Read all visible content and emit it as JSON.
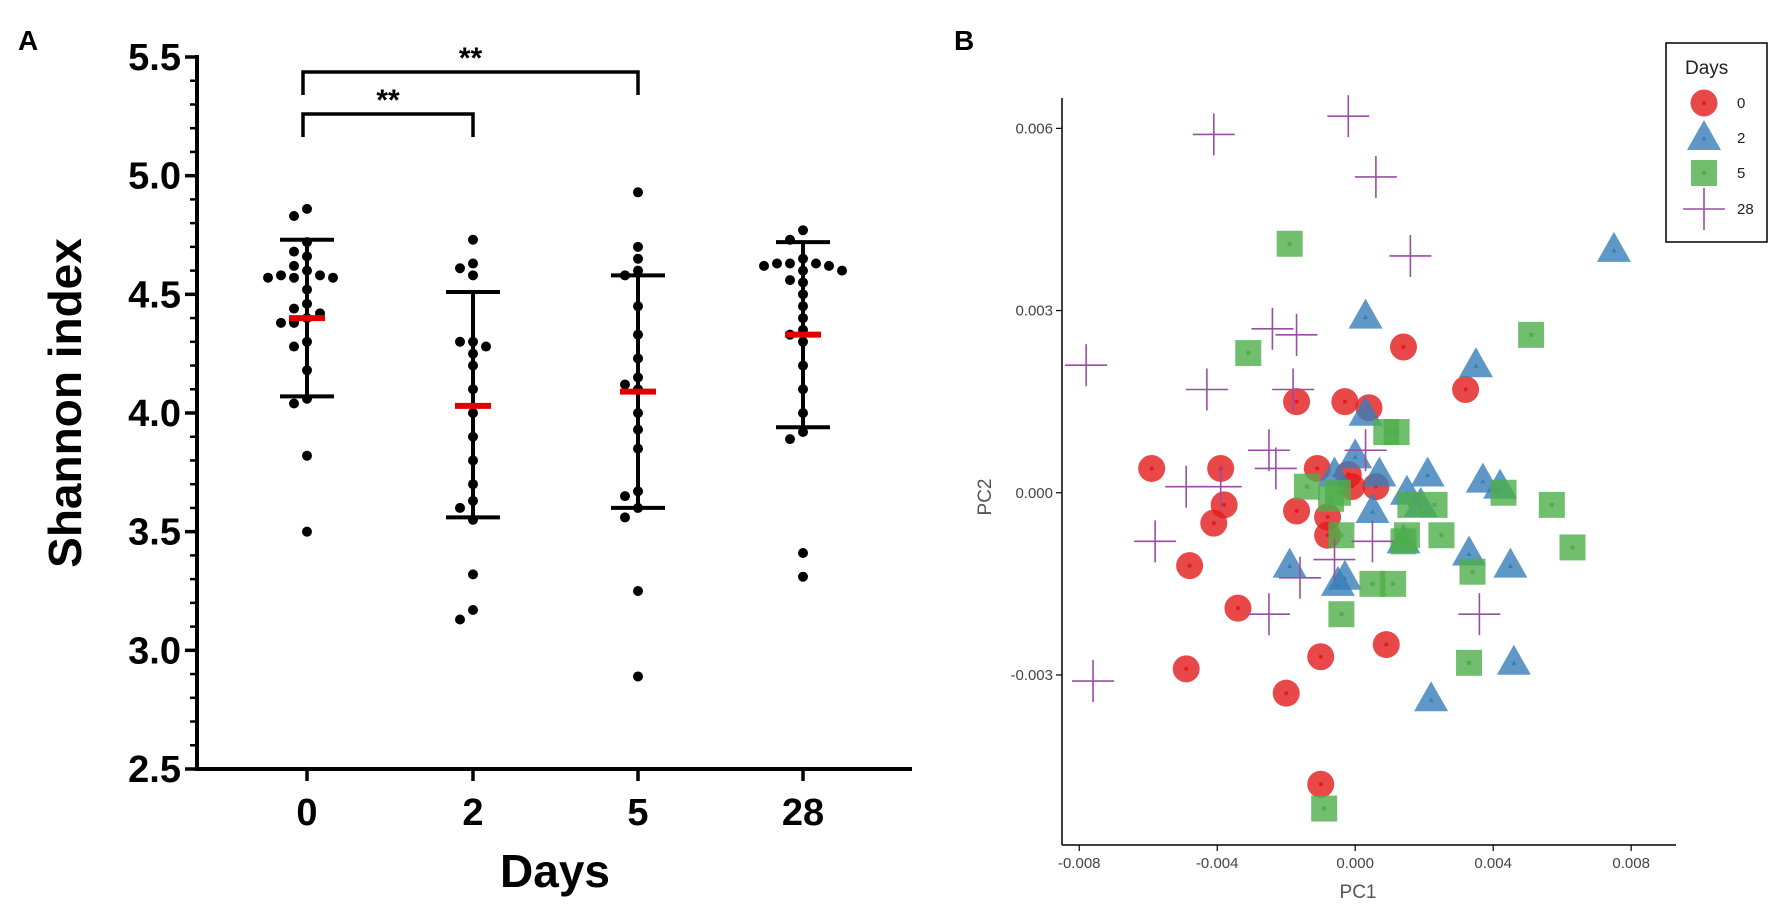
{
  "chart_data": [
    {
      "panel": "A",
      "type": "scatter",
      "xlabel": "Days",
      "ylabel": "Shannon index",
      "categories": [
        "0",
        "2",
        "5",
        "28"
      ],
      "ylim": [
        2.5,
        5.5
      ],
      "yticks": [
        "2.5",
        "3.0",
        "3.5",
        "4.0",
        "4.5",
        "5.0",
        "5.5"
      ],
      "groups": [
        {
          "day": "0",
          "mean": 4.4,
          "upper": 4.73,
          "lower": 4.07,
          "points": [
            4.86,
            4.83,
            4.72,
            4.68,
            4.66,
            4.62,
            4.6,
            4.58,
            4.58,
            4.57,
            4.57,
            4.57,
            4.52,
            4.46,
            4.44,
            4.42,
            4.4,
            4.38,
            4.38,
            4.3,
            4.28,
            4.18,
            4.06,
            4.04,
            3.82,
            3.5
          ]
        },
        {
          "day": "2",
          "mean": 4.03,
          "upper": 4.51,
          "lower": 3.56,
          "points": [
            4.73,
            4.63,
            4.61,
            4.58,
            4.3,
            4.3,
            4.28,
            4.25,
            4.2,
            4.1,
            4.0,
            3.9,
            3.8,
            3.7,
            3.63,
            3.6,
            3.55,
            3.32,
            3.17,
            3.13
          ]
        },
        {
          "day": "5",
          "mean": 4.09,
          "upper": 4.58,
          "lower": 3.6,
          "points": [
            4.93,
            4.7,
            4.65,
            4.6,
            4.58,
            4.45,
            4.33,
            4.23,
            4.15,
            4.12,
            4.1,
            4.0,
            3.93,
            3.85,
            3.67,
            3.65,
            3.6,
            3.56,
            3.25,
            2.89
          ]
        },
        {
          "day": "28",
          "mean": 4.33,
          "upper": 4.72,
          "lower": 3.94,
          "points": [
            4.77,
            4.73,
            4.65,
            4.63,
            4.63,
            4.63,
            4.62,
            4.62,
            4.6,
            4.6,
            4.56,
            4.55,
            4.5,
            4.45,
            4.4,
            4.35,
            4.33,
            4.3,
            4.2,
            4.1,
            4.0,
            3.92,
            3.89,
            3.41,
            3.31
          ]
        }
      ],
      "significance": [
        {
          "from": "0",
          "to": "2",
          "label": "**"
        },
        {
          "from": "0",
          "to": "5",
          "label": "**"
        }
      ]
    },
    {
      "panel": "B",
      "type": "scatter",
      "xlabel": "PC1",
      "ylabel": "PC2",
      "xlim": [
        -0.0085,
        0.0093
      ],
      "ylim": [
        -0.0058,
        0.0065
      ],
      "xticks": [
        "-0.008",
        "-0.004",
        "0.000",
        "0.004",
        "0.008"
      ],
      "xtick_values": [
        -0.008,
        -0.004,
        0,
        0.004,
        0.008
      ],
      "yticks": [
        "-0.003",
        "0.000",
        "0.003",
        "0.006"
      ],
      "ytick_values": [
        -0.003,
        0,
        0.003,
        0.006
      ],
      "legend_title": "Days",
      "legend_position": "top-right",
      "series": [
        {
          "name": "0",
          "shape": "circle",
          "color": "#e41a1c",
          "points": [
            [
              -0.0059,
              0.0004
            ],
            [
              -0.0039,
              0.0004
            ],
            [
              -0.0038,
              -0.0002
            ],
            [
              -0.0041,
              -0.0005
            ],
            [
              -0.0048,
              -0.0012
            ],
            [
              -0.0034,
              -0.0019
            ],
            [
              -0.0049,
              -0.0029
            ],
            [
              -0.002,
              -0.0033
            ],
            [
              -0.001,
              -0.0027
            ],
            [
              0.0009,
              -0.0025
            ],
            [
              -0.0017,
              0.0015
            ],
            [
              -0.0003,
              0.0015
            ],
            [
              0.0004,
              0.0014
            ],
            [
              0.0014,
              0.0024
            ],
            [
              0.0032,
              0.0017
            ],
            [
              -0.0011,
              0.0004
            ],
            [
              -0.0017,
              -0.0003
            ],
            [
              -0.0008,
              -0.0004
            ],
            [
              0.0006,
              0.0001
            ],
            [
              -0.0001,
              0.0001
            ],
            [
              -0.0002,
              0.0003
            ],
            [
              -0.001,
              -0.0048
            ],
            [
              -0.0008,
              -0.0007
            ]
          ]
        },
        {
          "name": "2",
          "shape": "triangle",
          "color": "#377eb8",
          "points": [
            [
              0.0075,
              0.004
            ],
            [
              0.0003,
              0.0029
            ],
            [
              0.0035,
              0.0021
            ],
            [
              0.0003,
              0.0013
            ],
            [
              0.0,
              0.0006
            ],
            [
              0.0007,
              0.0003
            ],
            [
              0.0021,
              0.0003
            ],
            [
              0.0037,
              0.0002
            ],
            [
              0.0042,
              0.0001
            ],
            [
              0.0015,
              0.0
            ],
            [
              0.0019,
              -0.0002
            ],
            [
              0.0005,
              -0.0003
            ],
            [
              0.0014,
              -0.0008
            ],
            [
              0.0033,
              -0.001
            ],
            [
              0.0045,
              -0.0012
            ],
            [
              -0.0019,
              -0.0012
            ],
            [
              -0.0005,
              -0.0015
            ],
            [
              0.0022,
              -0.0034
            ],
            [
              0.0046,
              -0.0028
            ],
            [
              -0.0003,
              -0.0014
            ],
            [
              -0.0006,
              0.0003
            ]
          ]
        },
        {
          "name": "5",
          "shape": "square",
          "color": "#4daf4a",
          "points": [
            [
              -0.0019,
              0.0041
            ],
            [
              0.0051,
              0.0026
            ],
            [
              -0.0031,
              0.0023
            ],
            [
              0.0009,
              0.001
            ],
            [
              0.0012,
              0.001
            ],
            [
              -0.0014,
              0.0001
            ],
            [
              -0.0005,
              0.0
            ],
            [
              0.0043,
              0.0
            ],
            [
              0.0057,
              -0.0002
            ],
            [
              0.0063,
              -0.0009
            ],
            [
              0.0016,
              -0.0002
            ],
            [
              0.0023,
              -0.0002
            ],
            [
              -0.0004,
              -0.0007
            ],
            [
              0.0015,
              -0.0007
            ],
            [
              0.0025,
              -0.0007
            ],
            [
              0.0034,
              -0.0013
            ],
            [
              0.0005,
              -0.0015
            ],
            [
              0.0011,
              -0.0015
            ],
            [
              -0.0004,
              -0.002
            ],
            [
              0.0033,
              -0.0028
            ],
            [
              -0.0009,
              -0.0052
            ],
            [
              -0.0007,
              -0.0001
            ],
            [
              0.0014,
              -0.0008
            ]
          ]
        },
        {
          "name": "28",
          "shape": "cross",
          "color": "#984ea3",
          "points": [
            [
              -0.0078,
              0.0021
            ],
            [
              -0.0041,
              0.0059
            ],
            [
              -0.0002,
              0.0062
            ],
            [
              0.0006,
              0.0052
            ],
            [
              0.0016,
              0.0039
            ],
            [
              -0.0024,
              0.0027
            ],
            [
              -0.0017,
              0.0026
            ],
            [
              -0.0043,
              0.0017
            ],
            [
              -0.0025,
              0.0007
            ],
            [
              -0.0023,
              0.0004
            ],
            [
              -0.0049,
              0.0001
            ],
            [
              -0.0039,
              0.0001
            ],
            [
              -0.0058,
              -0.0008
            ],
            [
              -0.0016,
              -0.0014
            ],
            [
              -0.0025,
              -0.002
            ],
            [
              -0.0006,
              -0.0011
            ],
            [
              0.0003,
              0.0007
            ],
            [
              0.0005,
              -0.0008
            ],
            [
              0.0036,
              -0.002
            ],
            [
              -0.0076,
              -0.0031
            ],
            [
              -0.0018,
              0.0017
            ]
          ]
        }
      ]
    }
  ],
  "panels": {
    "a_letter": "A",
    "b_letter": "B"
  }
}
